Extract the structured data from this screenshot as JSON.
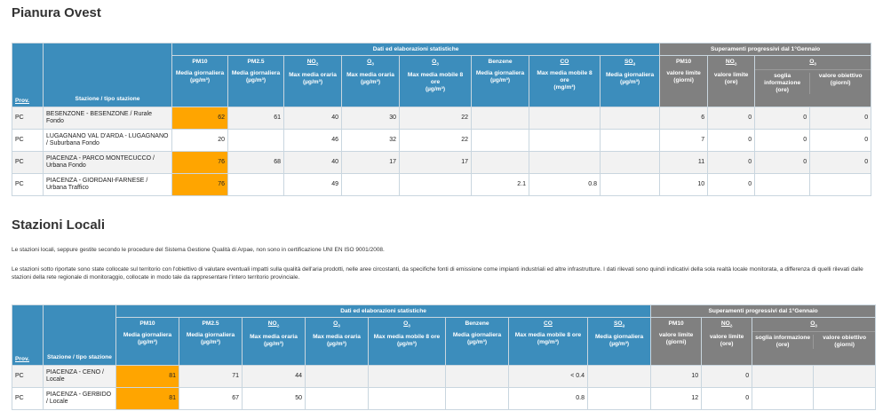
{
  "section1": {
    "title": "Pianura Ovest",
    "group_stats": "Dati ed elaborazioni statistiche",
    "group_exc": "Superamenti progressivi dal 1°Gennaio",
    "col_prov": "Prov.",
    "col_station": "Stazione / tipo stazione",
    "params": [
      {
        "name": "PM10",
        "sub": "",
        "desc": "Media giornaliera",
        "unit": "(µg/m³)"
      },
      {
        "name": "PM2.5",
        "sub": "",
        "desc": "Media giornaliera",
        "unit": "(µg/m³)"
      },
      {
        "name": "NO",
        "sub": "2",
        "desc": "Max media oraria",
        "unit": "(µg/m³)"
      },
      {
        "name": "O",
        "sub": "3",
        "desc": "Max media oraria",
        "unit": "(µg/m³)"
      },
      {
        "name": "O",
        "sub": "3",
        "desc": "Max media mobile 8 ore",
        "unit": "(µg/m³)"
      },
      {
        "name": "Benzene",
        "sub": "",
        "desc": "Media giornaliera",
        "unit": "(µg/m³)"
      },
      {
        "name": "CO",
        "sub": "",
        "desc": "Max media mobile 8 ore",
        "unit": "(mg/m³)"
      },
      {
        "name": "SO",
        "sub": "2",
        "desc": "Media giornaliera",
        "unit": "(µg/m³)"
      }
    ],
    "exc_top": [
      {
        "name": "PM10",
        "sub": ""
      },
      {
        "name": "NO",
        "sub": "2"
      },
      {
        "name": "O",
        "sub": "3"
      }
    ],
    "exc_sub": [
      {
        "desc": "valore limite",
        "unit": "(giorni)"
      },
      {
        "desc": "valore limite",
        "unit": "(ore)"
      },
      {
        "desc": "soglia informazione",
        "unit": "(ore)"
      },
      {
        "desc": "valore obiettivo",
        "unit": "(giorni)"
      }
    ],
    "rows": [
      {
        "prov": "PC",
        "station": "BESENZONE - BESENZONE / Rurale Fondo",
        "pm10": "62",
        "pm25": "61",
        "no2": "40",
        "o3h": "30",
        "o3m": "22",
        "benz": "",
        "co": "",
        "so2": "",
        "e1": "6",
        "e2": "0",
        "e3": "0",
        "e4": "0"
      },
      {
        "prov": "PC",
        "station": "LUGAGNANO VAL D'ARDA - LUGAGNANO / Suburbana Fondo",
        "pm10": "20",
        "pm25": "",
        "no2": "46",
        "o3h": "32",
        "o3m": "22",
        "benz": "",
        "co": "",
        "so2": "",
        "e1": "7",
        "e2": "0",
        "e3": "0",
        "e4": "0"
      },
      {
        "prov": "PC",
        "station": "PIACENZA - PARCO MONTECUCCO / Urbana Fondo",
        "pm10": "76",
        "pm25": "68",
        "no2": "40",
        "o3h": "17",
        "o3m": "17",
        "benz": "",
        "co": "",
        "so2": "",
        "e1": "11",
        "e2": "0",
        "e3": "0",
        "e4": "0"
      },
      {
        "prov": "PC",
        "station": "PIACENZA - GIORDANI-FARNESE / Urbana Traffico",
        "pm10": "76",
        "pm25": "",
        "no2": "49",
        "o3h": "",
        "o3m": "",
        "benz": "2.1",
        "co": "0.8",
        "so2": "",
        "e1": "10",
        "e2": "0",
        "e3": "",
        "e4": ""
      }
    ]
  },
  "section2": {
    "title": "Stazioni Locali",
    "para1": "Le stazioni locali, seppure gestite secondo le procedure del Sistema Gestione Qualità di Arpae, non sono in certificazione UNI EN ISO 9001/2008.",
    "para2": "Le stazioni sotto riportate sono state collocate sul territorio con l'obiettivo di valutare eventuali impatti sulla qualità dell'aria prodotti, nelle aree circostanti, da specifiche fonti di emissione come impianti industriali ed altre infrastrutture. I dati rilevati sono quindi indicativi della sola realtà locale monitorata, a differenza di quelli rilevati dalle stazioni della rete regionale di monitoraggio, collocate in modo tale da rappresentare l'intero territorio provinciale.",
    "group_stats": "Dati ed elaborazioni statistiche",
    "group_exc": "Superamenti progressivi dal 1°Gennaio",
    "col_prov": "Prov.",
    "col_station": "Stazione / tipo stazione",
    "params": [
      {
        "name": "PM10",
        "sub": "",
        "desc": "Media giornaliera",
        "unit": "(µg/m³)"
      },
      {
        "name": "PM2.5",
        "sub": "",
        "desc": "Media giornaliera",
        "unit": "(µg/m³)"
      },
      {
        "name": "NO",
        "sub": "2",
        "desc": "Max media oraria",
        "unit": "(µg/m³)"
      },
      {
        "name": "O",
        "sub": "3",
        "desc": "Max media oraria",
        "unit": "(µg/m³)"
      },
      {
        "name": "O",
        "sub": "3",
        "desc": "Max media mobile 8 ore",
        "unit": "(µg/m³)"
      },
      {
        "name": "Benzene",
        "sub": "",
        "desc": "Media giornaliera",
        "unit": "(µg/m³)"
      },
      {
        "name": "CO",
        "sub": "",
        "desc": "Max media mobile 8 ore",
        "unit": "(mg/m³)"
      },
      {
        "name": "SO",
        "sub": "2",
        "desc": "Media giornaliera",
        "unit": "(µg/m³)"
      }
    ],
    "exc_top": [
      {
        "name": "PM10",
        "sub": ""
      },
      {
        "name": "NO",
        "sub": "2"
      },
      {
        "name": "O",
        "sub": "3"
      }
    ],
    "exc_sub": [
      {
        "desc": "valore limite",
        "unit": "(giorni)"
      },
      {
        "desc": "valore limite",
        "unit": "(ore)"
      },
      {
        "desc": "soglia informazione",
        "unit": "(ore)"
      },
      {
        "desc": "valore obiettivo",
        "unit": "(giorni)"
      }
    ],
    "rows": [
      {
        "prov": "PC",
        "station": "PIACENZA - CENO / Locale",
        "pm10": "81",
        "pm25": "71",
        "no2": "44",
        "o3h": "",
        "o3m": "",
        "benz": "",
        "co": "< 0.4",
        "so2": "",
        "e1": "10",
        "e2": "0",
        "e3": "",
        "e4": ""
      },
      {
        "prov": "PC",
        "station": "PIACENZA - GERBIDO / Locale",
        "pm10": "81",
        "pm25": "67",
        "no2": "50",
        "o3h": "",
        "o3m": "",
        "benz": "",
        "co": "0.8",
        "so2": "",
        "e1": "12",
        "e2": "0",
        "e3": "",
        "e4": ""
      }
    ]
  },
  "colors": {
    "header_blue": "#3c8dbc",
    "header_grey": "#808080",
    "pm10_exceed": "#ffa500",
    "row_alt": "#f2f2f2"
  }
}
